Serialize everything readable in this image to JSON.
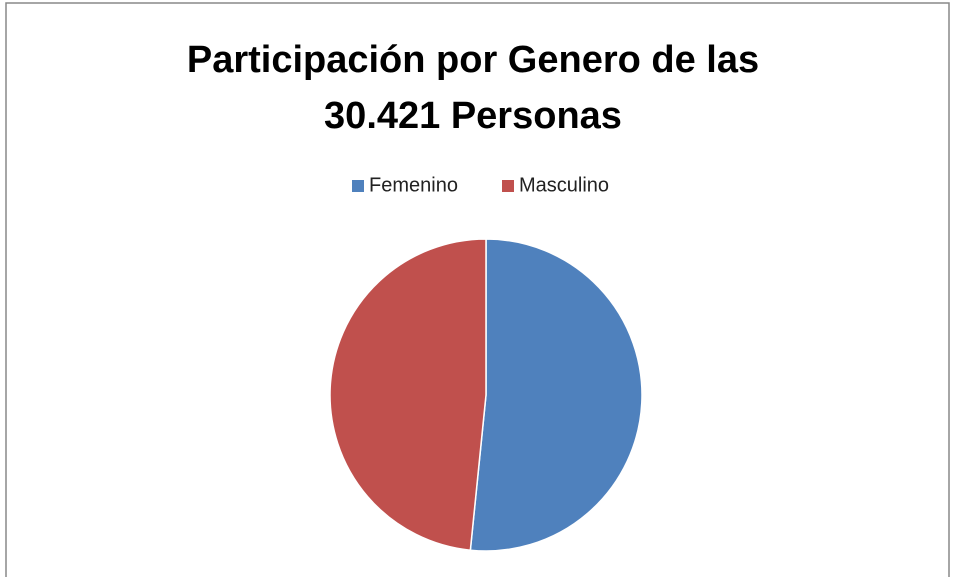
{
  "chart_data": {
    "type": "pie",
    "title": [
      "Participación por Genero de las",
      "30.421 Personas"
    ],
    "categories": [
      "Femenino",
      "Masculino"
    ],
    "values": [
      51.6,
      48.4
    ],
    "colors": [
      "#4f81bd",
      "#c0504d"
    ],
    "legend": "top"
  }
}
